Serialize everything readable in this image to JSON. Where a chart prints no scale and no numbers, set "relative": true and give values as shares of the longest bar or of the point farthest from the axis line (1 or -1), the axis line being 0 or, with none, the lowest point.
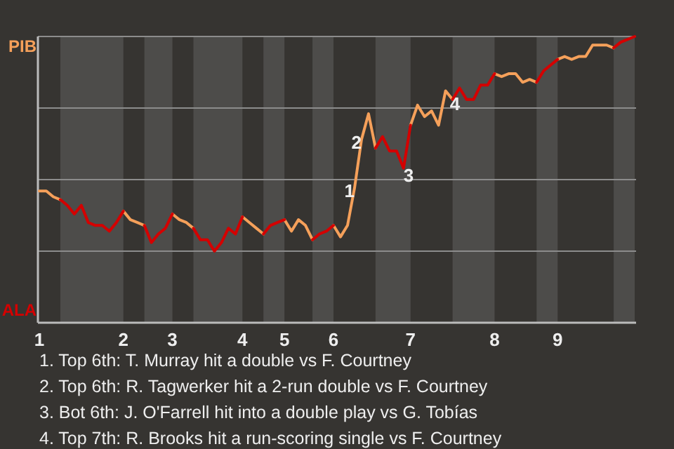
{
  "chart_data": {
    "type": "line",
    "relative": true,
    "categories": [
      "1",
      null,
      null,
      null,
      null,
      null,
      null,
      null,
      null,
      null,
      null,
      null,
      "2",
      null,
      null,
      null,
      null,
      null,
      null,
      "3",
      null,
      null,
      null,
      null,
      null,
      null,
      null,
      null,
      null,
      "4",
      null,
      null,
      null,
      null,
      null,
      "5",
      null,
      null,
      null,
      null,
      null,
      null,
      "6",
      null,
      null,
      null,
      null,
      null,
      null,
      null,
      null,
      null,
      null,
      "7",
      null,
      null,
      null,
      null,
      null,
      null,
      null,
      null,
      null,
      null,
      null,
      "8",
      null,
      null,
      null,
      null,
      null,
      null,
      null,
      null,
      "9",
      null,
      null,
      null,
      null,
      null,
      null,
      null,
      null,
      null,
      null,
      null
    ],
    "grid": "y",
    "marker": "none",
    "line_style": "solid",
    "series": [
      {
        "color": "#f5a05a",
        "values": [
          0.46,
          0.46,
          0.44,
          0.43,
          null,
          null,
          null,
          null,
          null,
          null,
          null,
          null,
          0.39,
          0.36,
          0.35,
          0.34,
          null,
          null,
          null,
          0.38,
          0.36,
          0.35,
          0.33,
          null,
          null,
          null,
          null,
          null,
          null,
          0.37,
          0.35,
          0.33,
          0.31,
          null,
          null,
          0.36,
          0.32,
          0.36,
          0.34,
          0.29,
          null,
          null,
          0.34,
          0.3,
          0.34,
          0.47,
          0.64,
          0.73,
          0.61,
          null,
          null,
          null,
          null,
          0.69,
          0.76,
          0.72,
          0.74,
          0.69,
          0.81,
          0.78,
          null,
          null,
          null,
          null,
          null,
          0.87,
          0.86,
          0.87,
          0.87,
          0.84,
          0.85,
          0.84,
          null,
          null,
          0.92,
          0.93,
          0.92,
          0.93,
          0.93,
          0.97,
          0.97,
          0.97,
          0.96,
          null,
          null,
          null
        ]
      },
      {
        "color": "#d40000",
        "values": [
          null,
          null,
          null,
          0.43,
          0.41,
          0.38,
          0.41,
          0.35,
          0.34,
          0.34,
          0.32,
          0.35,
          0.39,
          null,
          null,
          0.34,
          0.28,
          0.31,
          0.33,
          0.38,
          null,
          null,
          0.33,
          0.29,
          0.29,
          0.25,
          0.28,
          0.33,
          0.31,
          0.37,
          null,
          null,
          0.31,
          0.34,
          0.35,
          0.36,
          null,
          null,
          null,
          0.29,
          0.31,
          0.32,
          0.34,
          null,
          null,
          null,
          null,
          null,
          0.61,
          0.65,
          0.6,
          0.6,
          0.54,
          0.69,
          null,
          null,
          null,
          null,
          null,
          0.78,
          0.82,
          0.78,
          0.78,
          0.83,
          0.83,
          0.87,
          null,
          null,
          null,
          null,
          null,
          0.84,
          0.88,
          0.9,
          0.92,
          null,
          null,
          null,
          null,
          null,
          null,
          null,
          0.96,
          0.98,
          0.99,
          1
        ]
      }
    ],
    "annotations": [
      "PIB",
      "ALA",
      {
        "text": "1",
        "y": 0.47
      },
      {
        "text": "2",
        "y": 0.64
      },
      {
        "text": "3",
        "y": 0.54
      },
      {
        "text": "4",
        "y": 0.81
      },
      "1. Top 6th: T. Murray hit a double vs F. Courtney",
      "2. Top 6th: R. Tagwerker hit a 2-run double vs F. Courtney",
      "3. Bot 6th: J. O'Farrell hit into a double play vs G. Tobías",
      "4. Top 7th: R. Brooks hit a run-scoring single vs F. Courtney"
    ]
  }
}
